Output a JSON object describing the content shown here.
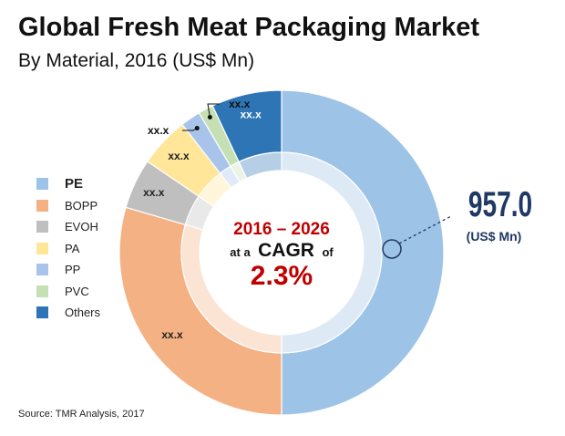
{
  "chart_data": {
    "type": "pie",
    "title": "Global Fresh Meat Packaging Market",
    "subtitle": "By Material, 2016 (US$ Mn)",
    "categories": [
      "PE",
      "BOPP",
      "EVOH",
      "PA",
      "PP",
      "PVC",
      "Others"
    ],
    "shares": [
      50,
      29.5,
      5,
      5,
      2,
      1.5,
      7
    ],
    "colors": [
      "#9dc3e6",
      "#f4b183",
      "#bfbfbf",
      "#ffe699",
      "#a9c4eb",
      "#c5e0b4",
      "#2e75b6"
    ],
    "data_labels": [
      "",
      "xx.x",
      "xx.x",
      "xx.x",
      "",
      "",
      "xx.x"
    ],
    "callout_labels": [
      "xx.x",
      "xx.x"
    ],
    "highlight": {
      "value": "957.0",
      "unit": "(US$ Mn)"
    },
    "center": {
      "line1": "2016 – 2026",
      "line2_a": "at a",
      "line2_b": "CAGR",
      "line2_c": "of",
      "line3": "2.3%"
    },
    "legend_position": "left"
  },
  "source": "Source: TMR Analysis, 2017"
}
